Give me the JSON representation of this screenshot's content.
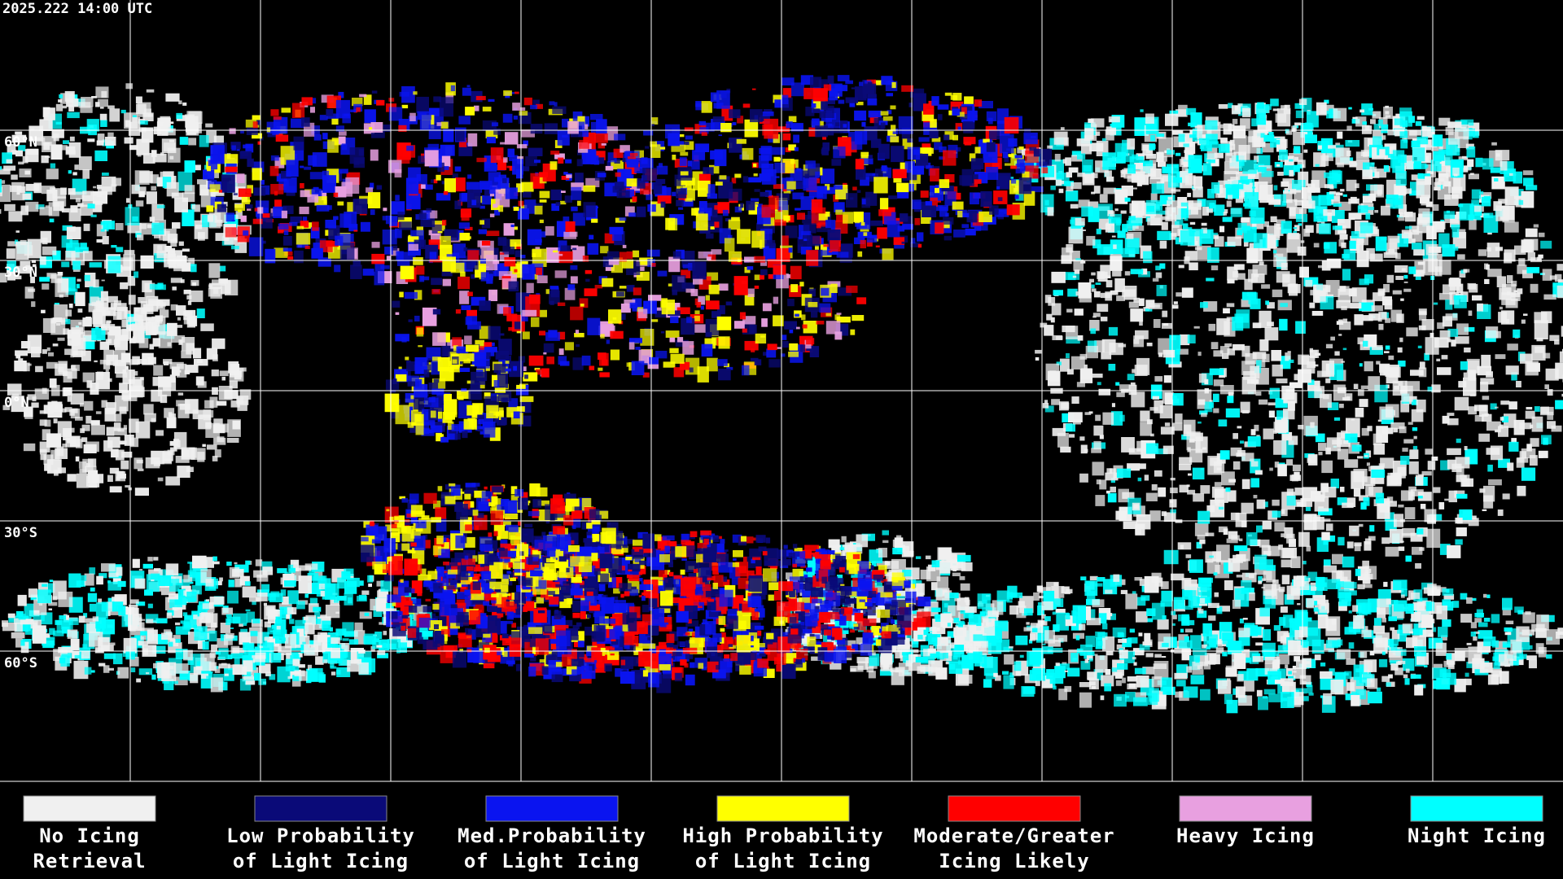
{
  "header": {
    "timestamp": "2025.222 14:00 UTC"
  },
  "latitude_labels": [
    "60°N",
    "30°N",
    "0°N",
    "30°S",
    "60°S"
  ],
  "legend": [
    {
      "color": "#f0f0f0",
      "lines": [
        "No Icing",
        "Retrieval"
      ]
    },
    {
      "color": "#0a0a78",
      "lines": [
        "Low Probability",
        "of Light Icing"
      ]
    },
    {
      "color": "#0a14f0",
      "lines": [
        "Med.Probability",
        "of Light Icing"
      ]
    },
    {
      "color": "#ffff00",
      "lines": [
        "High Probability",
        "of Light Icing"
      ]
    },
    {
      "color": "#ff0000",
      "lines": [
        "Moderate/Greater",
        "Icing Likely"
      ]
    },
    {
      "color": "#e8a0e0",
      "lines": [
        "Heavy Icing",
        ""
      ]
    },
    {
      "color": "#00ffff",
      "lines": [
        "Night Icing",
        ""
      ]
    }
  ]
}
